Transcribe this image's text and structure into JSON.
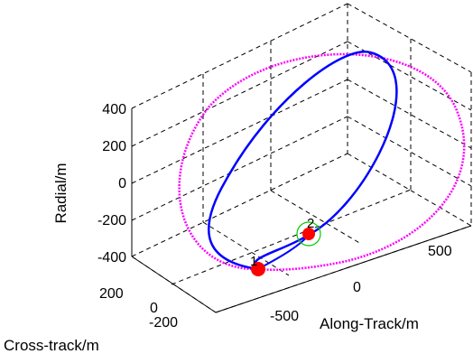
{
  "chart_data": {
    "type": "line3d",
    "title": "",
    "xlabel": "Along-Track/m",
    "ylabel": "Cross-track/m",
    "zlabel": "Radial/m",
    "x_ticks": [
      "-500",
      "0",
      "500"
    ],
    "y_ticks": [
      "-200",
      "0",
      "200"
    ],
    "z_ticks": [
      "-400",
      "-200",
      "0",
      "200",
      "400"
    ],
    "grid": true,
    "series": [
      {
        "name": "",
        "style": "dotted",
        "color": "#ff00ff"
      },
      {
        "name": "",
        "style": "solid",
        "color": "#0000ff"
      }
    ],
    "markers": [
      {
        "label": "1",
        "color": "#ff0000"
      },
      {
        "label": "2",
        "color": "#ff0000",
        "ring_color": "#00cc00"
      }
    ]
  }
}
